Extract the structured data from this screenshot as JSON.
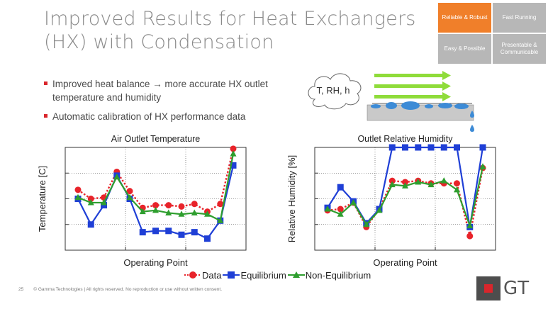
{
  "title": {
    "line1": "Improved Results for Heat Exchangers",
    "line2": "(HX) with Condensation"
  },
  "quadrant": [
    {
      "label": "Reliable & Robust",
      "active": true
    },
    {
      "label": "Fast Running",
      "active": false
    },
    {
      "label": "Easy & Possible",
      "active": false
    },
    {
      "label": "Presentable & Communicable",
      "active": false
    }
  ],
  "bullets": [
    "Improved heat balance → more accurate HX outlet temperature and humidity",
    "Automatic calibration of HX performance data"
  ],
  "illustration": {
    "cloud_text": "T, RH, h"
  },
  "legend": {
    "data": "Data",
    "equilibrium": "Equilibrium",
    "non_equilibrium": "Non-Equilibrium"
  },
  "colors": {
    "data": "#e8232a",
    "equilibrium": "#1f3fd6",
    "non_equilibrium": "#2e9e2e",
    "accent": "#f07f2a"
  },
  "chart_data": [
    {
      "type": "line",
      "title": "Air Outlet Temperature",
      "xlabel": "Operating Point",
      "ylabel": "Temperature [C]",
      "grid": true,
      "ylim": [
        0,
        4
      ],
      "x": [
        1,
        2,
        3,
        4,
        5,
        6,
        7,
        8,
        9,
        10,
        11,
        12,
        13
      ],
      "series": [
        {
          "name": "Data",
          "style": "dotted-circle",
          "values": [
            2.35,
            2.0,
            2.05,
            3.05,
            2.3,
            1.65,
            1.75,
            1.75,
            1.7,
            1.8,
            1.5,
            1.8,
            3.95
          ]
        },
        {
          "name": "Equilibrium",
          "style": "solid-square",
          "values": [
            2.0,
            1.0,
            1.75,
            2.9,
            2.0,
            0.7,
            0.75,
            0.75,
            0.6,
            0.7,
            0.45,
            1.15,
            3.3
          ]
        },
        {
          "name": "Non-Equilibrium",
          "style": "solid-triangle",
          "values": [
            2.05,
            1.85,
            1.85,
            2.85,
            2.05,
            1.5,
            1.55,
            1.45,
            1.4,
            1.45,
            1.4,
            1.15,
            3.75
          ]
        }
      ]
    },
    {
      "type": "line",
      "title": "Outlet Relative Humidity",
      "xlabel": "Operating Point",
      "ylabel": "Relative Humidity [%]",
      "grid": true,
      "ylim": [
        0,
        4
      ],
      "x": [
        1,
        2,
        3,
        4,
        5,
        6,
        7,
        8,
        9,
        10,
        11,
        12,
        13
      ],
      "series": [
        {
          "name": "Data",
          "style": "dotted-circle",
          "values": [
            1.55,
            1.6,
            1.85,
            0.9,
            1.6,
            2.7,
            2.65,
            2.7,
            2.6,
            2.6,
            2.6,
            0.55,
            3.2
          ]
        },
        {
          "name": "Equilibrium",
          "style": "solid-square",
          "values": [
            1.65,
            2.45,
            1.9,
            1.05,
            1.6,
            4.0,
            4.0,
            4.0,
            4.0,
            4.0,
            4.0,
            0.9,
            4.0
          ]
        },
        {
          "name": "Non-Equilibrium",
          "style": "solid-triangle",
          "values": [
            1.6,
            1.4,
            1.85,
            1.0,
            1.55,
            2.55,
            2.5,
            2.65,
            2.55,
            2.7,
            2.35,
            0.95,
            3.25
          ]
        }
      ]
    }
  ],
  "footer": {
    "page": "25",
    "copyright": "© Gamma Technologies | All rights reserved. No reproduction or use without written consent."
  },
  "logo": {
    "text": "GT"
  }
}
